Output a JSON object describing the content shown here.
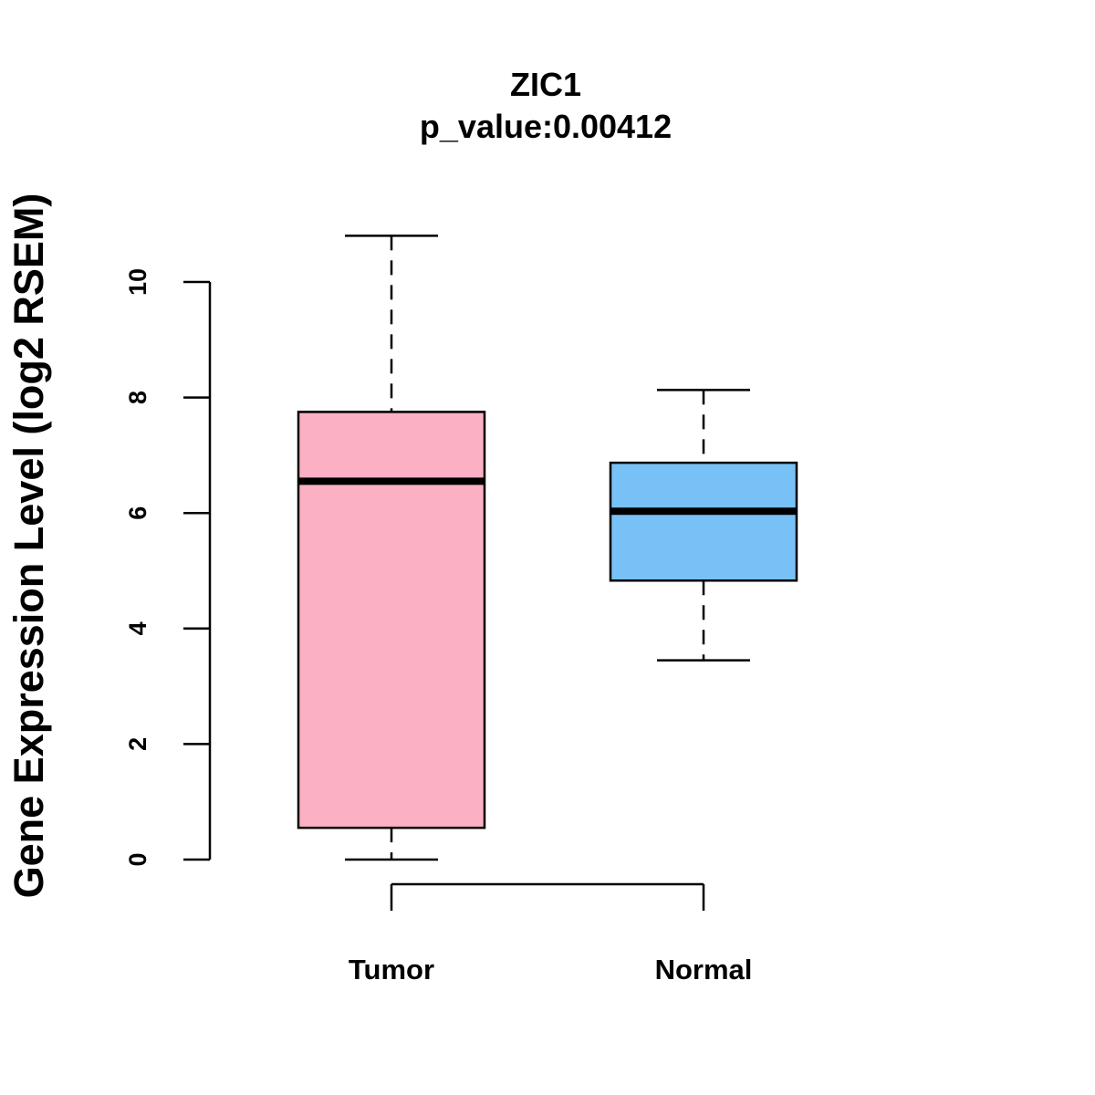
{
  "chart_data": {
    "type": "boxplot",
    "title": "ZIC1",
    "subtitle": "p_value:0.00412",
    "xlabel": "",
    "ylabel": "Gene Expression Level (log2 RSEM)",
    "ylim": [
      0,
      10
    ],
    "y_ticks": [
      0,
      2,
      4,
      6,
      8,
      10
    ],
    "y_tick_labels": [
      "0",
      "2",
      "4",
      "6",
      "8",
      "10"
    ],
    "grid": false,
    "legend": "none",
    "categories": [
      "Tumor",
      "Normal"
    ],
    "boxes": [
      {
        "category": "Tumor",
        "whisker_low": 0.0,
        "q1": 0.55,
        "median": 6.55,
        "q3": 7.75,
        "whisker_high": 10.8,
        "color": "#fbb1c3"
      },
      {
        "category": "Normal",
        "whisker_low": 3.45,
        "q1": 4.83,
        "median": 6.03,
        "q3": 6.87,
        "whisker_high": 8.13,
        "color": "#78c1f7"
      }
    ]
  }
}
